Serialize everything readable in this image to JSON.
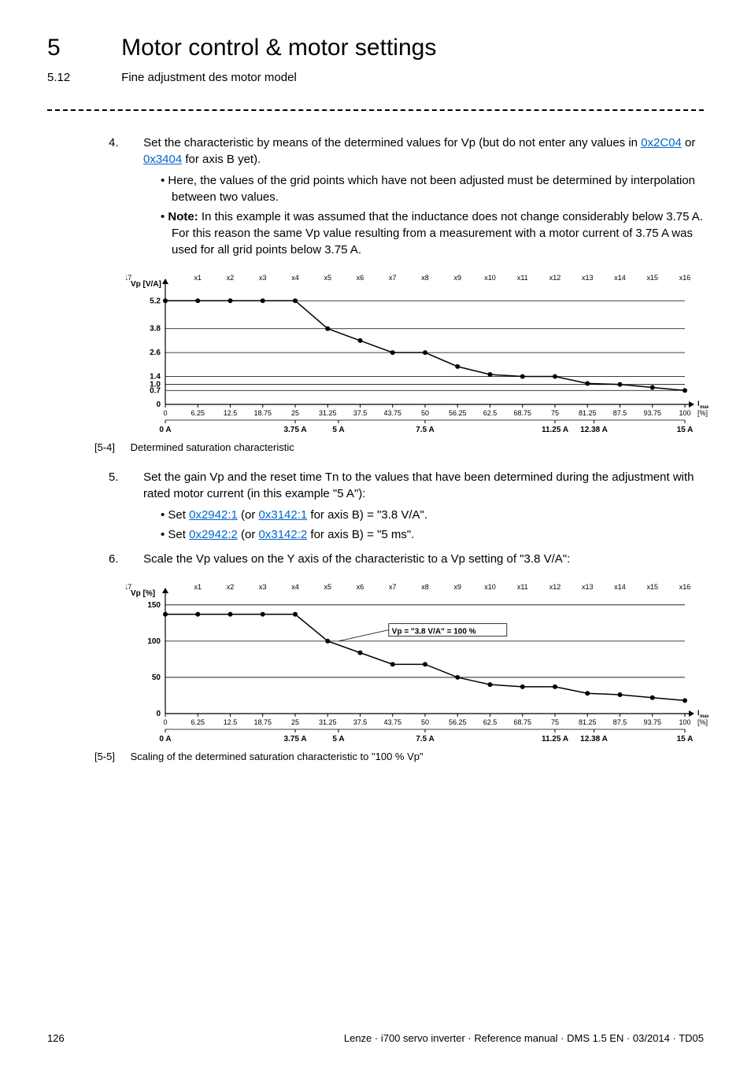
{
  "header": {
    "chapter_num": "5",
    "chapter_title": "Motor control & motor settings",
    "section_num": "5.12",
    "section_title": "Fine adjustment des motor model"
  },
  "step4": {
    "num": "4.",
    "text_a": "Set the characteristic by means of the determined values for Vp (but do not enter any values in ",
    "link1": "0x2C04",
    "text_b": " or ",
    "link2": "0x3404",
    "text_c": " for axis B yet).",
    "bullet1": "Here, the values of the grid points which have not been adjusted must be determined by interpolation between two values.",
    "bullet2_a": "Note:",
    "bullet2_b": " In this example it was assumed that the inductance does not change considerably below 3.75 A. For this reason the same Vp value resulting from a measurement with a motor current of 3.75 A was used for all grid points below 3.75 A."
  },
  "step5": {
    "num": "5.",
    "text": "Set the gain Vp and the reset time Tn to the values that have been determined during the adjustment with rated motor current (in this example \"5 A\"):",
    "b1_a": "Set ",
    "b1_l1": "0x2942:1",
    "b1_b": " (or ",
    "b1_l2": "0x3142:1",
    "b1_c": " for axis B) = \"3.8 V/A\".",
    "b2_a": "Set ",
    "b2_l1": "0x2942:2",
    "b2_b": " (or ",
    "b2_l2": "0x3142:2",
    "b2_c": " for axis B) = \"5 ms\"."
  },
  "step6": {
    "num": "6.",
    "text": "Scale the Vp values on the Y axis of the characteristic to a Vp setting of \"3.8 V/A\":"
  },
  "chart1": {
    "ylabel": "Vp [V/A]",
    "x_top_prefix": "x",
    "x_top_count": 17,
    "yticks": [
      {
        "v": 5.2,
        "lab": "5.2"
      },
      {
        "v": 3.8,
        "lab": "3.8"
      },
      {
        "v": 2.6,
        "lab": "2.6"
      },
      {
        "v": 1.4,
        "lab": "1.4"
      },
      {
        "v": 1.0,
        "lab": "1.0"
      },
      {
        "v": 0.7,
        "lab": "0.7"
      },
      {
        "v": 0,
        "lab": "0"
      }
    ],
    "ymax": 6.0,
    "xticks_pct": [
      0,
      6.25,
      12.5,
      18.75,
      25,
      31.25,
      37.5,
      43.75,
      50,
      56.25,
      62.5,
      68.75,
      75,
      81.25,
      87.5,
      93.75,
      100
    ],
    "xlabel_end": "Imax [%]",
    "second_axis": [
      {
        "p": 0,
        "lab": "0 A"
      },
      {
        "p": 25,
        "lab": "3.75 A"
      },
      {
        "p": 33.33,
        "lab": "5 A"
      },
      {
        "p": 50,
        "lab": "7.5 A"
      },
      {
        "p": 75,
        "lab": "11.25 A"
      },
      {
        "p": 82.5,
        "lab": "12.38 A"
      },
      {
        "p": 100,
        "lab": "15 A"
      }
    ],
    "data_xy": [
      [
        0,
        5.2
      ],
      [
        6.25,
        5.2
      ],
      [
        12.5,
        5.2
      ],
      [
        18.75,
        5.2
      ],
      [
        25,
        5.2
      ],
      [
        31.25,
        3.8
      ],
      [
        37.5,
        3.2
      ],
      [
        43.75,
        2.6
      ],
      [
        50,
        2.6
      ],
      [
        56.25,
        1.9
      ],
      [
        62.5,
        1.5
      ],
      [
        68.75,
        1.4
      ],
      [
        75,
        1.4
      ],
      [
        81.25,
        1.05
      ],
      [
        87.5,
        1.0
      ],
      [
        93.75,
        0.85
      ],
      [
        100,
        0.7
      ]
    ],
    "line_color": "#000000",
    "bg": "#ffffff",
    "grid_color": "#000000"
  },
  "chart2": {
    "ylabel": "Vp [%]",
    "x_top_prefix": "x",
    "x_top_count": 17,
    "yticks": [
      {
        "v": 150,
        "lab": "150"
      },
      {
        "v": 100,
        "lab": "100"
      },
      {
        "v": 50,
        "lab": "50"
      },
      {
        "v": 0,
        "lab": "0"
      }
    ],
    "ymax": 165,
    "xticks_pct": [
      0,
      6.25,
      12.5,
      18.75,
      25,
      31.25,
      37.5,
      43.75,
      50,
      56.25,
      62.5,
      68.75,
      75,
      81.25,
      87.5,
      93.75,
      100
    ],
    "xlabel_end": "Imax [%]",
    "second_axis": [
      {
        "p": 0,
        "lab": "0 A"
      },
      {
        "p": 25,
        "lab": "3.75 A"
      },
      {
        "p": 33.33,
        "lab": "5 A"
      },
      {
        "p": 50,
        "lab": "7.5 A"
      },
      {
        "p": 75,
        "lab": "11.25 A"
      },
      {
        "p": 82.5,
        "lab": "12.38 A"
      },
      {
        "p": 100,
        "lab": "15 A"
      }
    ],
    "data_xy": [
      [
        0,
        137
      ],
      [
        6.25,
        137
      ],
      [
        12.5,
        137
      ],
      [
        18.75,
        137
      ],
      [
        25,
        137
      ],
      [
        31.25,
        100
      ],
      [
        37.5,
        84
      ],
      [
        43.75,
        68
      ],
      [
        50,
        68
      ],
      [
        56.25,
        50
      ],
      [
        62.5,
        40
      ],
      [
        68.75,
        37
      ],
      [
        75,
        37
      ],
      [
        81.25,
        28
      ],
      [
        87.5,
        26
      ],
      [
        93.75,
        22
      ],
      [
        100,
        18
      ]
    ],
    "box_label": "Vp = \"3.8 V/A\" = 100 %",
    "line_color": "#000000",
    "bg": "#ffffff",
    "grid_color": "#000000"
  },
  "captions": {
    "c1_tag": "[5-4]",
    "c1_text": "Determined saturation characteristic",
    "c2_tag": "[5-5]",
    "c2_text": "Scaling of the determined saturation characteristic to \"100 % Vp\""
  },
  "footer": {
    "page": "126",
    "right": "Lenze · i700 servo inverter · Reference manual · DMS 1.5 EN · 03/2014 · TD05"
  }
}
